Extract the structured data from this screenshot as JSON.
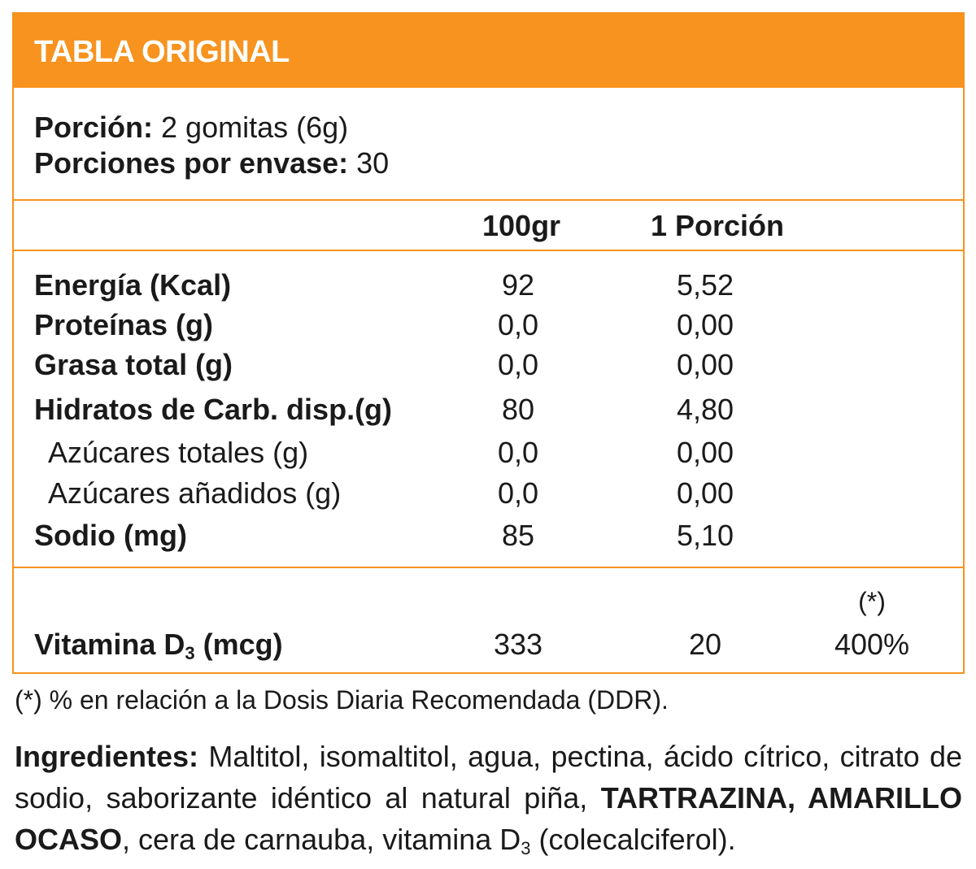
{
  "header": {
    "title": "TABLA ORIGINAL"
  },
  "serving": {
    "portion_label": "Porción:",
    "portion_value": " 2 gomitas (6g)",
    "per_container_label": "Porciones por envase:",
    "per_container_value": " 30"
  },
  "columns": {
    "per_100": "100gr",
    "per_portion": "1 Porción"
  },
  "rows": [
    {
      "label": "Energía (Kcal)",
      "per_100": "92",
      "per_portion": "5,52"
    },
    {
      "label": "Proteínas (g)",
      "per_100": "0,0",
      "per_portion": "0,00"
    },
    {
      "label": "Grasa total (g)",
      "per_100": "0,0",
      "per_portion": "0,00"
    },
    {
      "label": "Hidratos de Carb. disp.(g)",
      "per_100": "80",
      "per_portion": "4,80"
    },
    {
      "label": "Azúcares totales (g)",
      "per_100": "0,0",
      "per_portion": "0,00"
    },
    {
      "label": "Azúcares añadidos (g)",
      "per_100": "0,0",
      "per_portion": "0,00"
    },
    {
      "label": "Sodio (mg)",
      "per_100": "85",
      "per_portion": "5,10"
    }
  ],
  "vitamin": {
    "label_main": "Vitamina D",
    "label_sub": "3",
    "label_unit": " (mcg)",
    "per_100": "333",
    "per_portion": "20",
    "pct_mark": "(*)",
    "pct": "400%"
  },
  "footnote": "(*) % en relación a la Dosis Diaria Recomendada (DDR).",
  "ingredients": {
    "label": "Ingredientes:",
    "text_1": " Maltitol, isomaltitol, agua, pectina, ácido cítrico, citrato de sodio, saborizante idéntico al natural piña, ",
    "bold_1": "TARTRAZINA, AMARILLO OCASO",
    "text_2": ", cera de carnauba, vitamina D",
    "sub": "3",
    "text_3": " (colecalciferol)."
  },
  "colors": {
    "accent": "#f7931e",
    "text": "#1a1a1a",
    "header_text": "#ffffff"
  }
}
